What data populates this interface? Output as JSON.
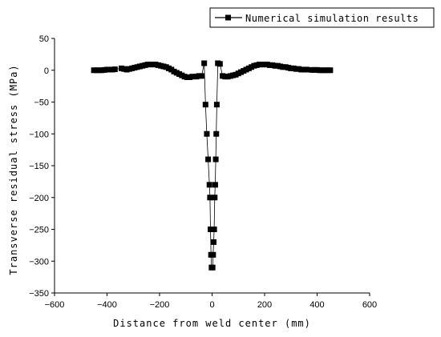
{
  "chart_data": {
    "type": "line",
    "xlabel": "Distance from weld center (mm)",
    "ylabel": "Transverse residual stress (MPa)",
    "xlim": [
      -600,
      600
    ],
    "ylim": [
      -350,
      50
    ],
    "xticks": [
      -600,
      -400,
      -200,
      0,
      200,
      400,
      600
    ],
    "yticks": [
      50,
      0,
      -50,
      -100,
      -150,
      -200,
      -250,
      -300,
      -350
    ],
    "grid": false,
    "legend_position": "top-right",
    "series": [
      {
        "name": "Numerical simulation results",
        "marker": "square",
        "color": "#000000",
        "points": [
          [
            -450,
            0
          ],
          [
            -440,
            0
          ],
          [
            -430,
            0
          ],
          [
            -420,
            0
          ],
          [
            -410,
            0.5
          ],
          [
            -400,
            1
          ],
          [
            -390,
            1
          ],
          [
            -380,
            1
          ],
          [
            -370,
            1.5
          ],
          [
            -345,
            3
          ],
          [
            -335,
            2
          ],
          [
            -325,
            1
          ],
          [
            -315,
            2
          ],
          [
            -305,
            3
          ],
          [
            -295,
            4
          ],
          [
            -285,
            5
          ],
          [
            -275,
            6
          ],
          [
            -265,
            7
          ],
          [
            -255,
            8
          ],
          [
            -245,
            9
          ],
          [
            -235,
            9
          ],
          [
            -225,
            9
          ],
          [
            -215,
            9
          ],
          [
            -205,
            8
          ],
          [
            -195,
            7
          ],
          [
            -185,
            6
          ],
          [
            -175,
            5
          ],
          [
            -165,
            3
          ],
          [
            -155,
            1
          ],
          [
            -145,
            -2
          ],
          [
            -135,
            -4
          ],
          [
            -125,
            -6
          ],
          [
            -115,
            -8
          ],
          [
            -105,
            -10
          ],
          [
            -95,
            -11
          ],
          [
            -85,
            -11
          ],
          [
            -75,
            -10
          ],
          [
            -60,
            -10
          ],
          [
            -50,
            -9
          ],
          [
            -40,
            -9
          ],
          [
            -30,
            11
          ],
          [
            -25,
            -54
          ],
          [
            -20,
            -100
          ],
          [
            -15,
            -140
          ],
          [
            -10,
            -180
          ],
          [
            -8,
            -200
          ],
          [
            -6,
            -250
          ],
          [
            -4,
            -290
          ],
          [
            -2,
            -310
          ],
          [
            2,
            -310
          ],
          [
            4,
            -290
          ],
          [
            6,
            -270
          ],
          [
            8,
            -250
          ],
          [
            10,
            -200
          ],
          [
            12,
            -180
          ],
          [
            14,
            -140
          ],
          [
            16,
            -100
          ],
          [
            18,
            -54
          ],
          [
            22,
            11
          ],
          [
            30,
            10
          ],
          [
            40,
            -9
          ],
          [
            50,
            -10
          ],
          [
            60,
            -10
          ],
          [
            70,
            -9
          ],
          [
            80,
            -8
          ],
          [
            90,
            -7
          ],
          [
            100,
            -5
          ],
          [
            110,
            -3
          ],
          [
            120,
            -1
          ],
          [
            130,
            1
          ],
          [
            140,
            3
          ],
          [
            150,
            5
          ],
          [
            160,
            7
          ],
          [
            170,
            8
          ],
          [
            180,
            9
          ],
          [
            190,
            9
          ],
          [
            200,
            9
          ],
          [
            210,
            9
          ],
          [
            220,
            8
          ],
          [
            230,
            8
          ],
          [
            240,
            7
          ],
          [
            250,
            7
          ],
          [
            260,
            6
          ],
          [
            270,
            5
          ],
          [
            280,
            5
          ],
          [
            290,
            4
          ],
          [
            300,
            3
          ],
          [
            310,
            3
          ],
          [
            320,
            2
          ],
          [
            330,
            2
          ],
          [
            340,
            1
          ],
          [
            350,
            1
          ],
          [
            360,
            1
          ],
          [
            380,
            0.5
          ],
          [
            390,
            0.5
          ],
          [
            400,
            0.5
          ],
          [
            410,
            0
          ],
          [
            420,
            0
          ],
          [
            430,
            0
          ],
          [
            440,
            0
          ],
          [
            450,
            0
          ]
        ]
      }
    ]
  }
}
